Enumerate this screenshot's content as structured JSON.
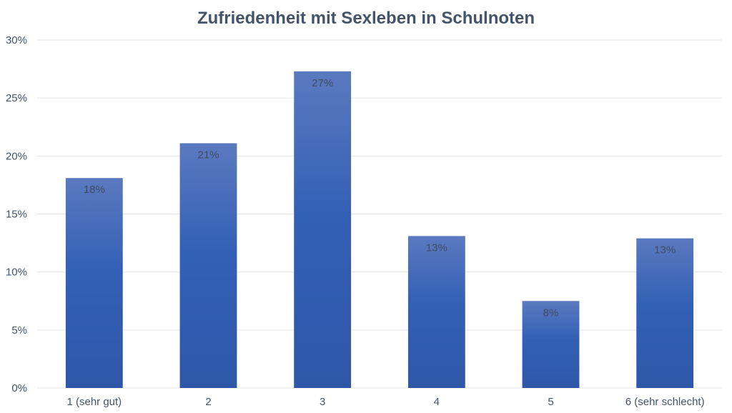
{
  "chart_data": {
    "type": "bar",
    "title": "Zufriedenheit mit Sexleben in Schulnoten",
    "xlabel": "",
    "ylabel": "",
    "categories": [
      "1 (sehr gut)",
      "2",
      "3",
      "4",
      "5",
      "6 (sehr schlecht)"
    ],
    "values": [
      18.1,
      21.1,
      27.3,
      13.1,
      7.5,
      12.9
    ],
    "data_labels": [
      "18%",
      "21%",
      "27%",
      "13%",
      "8%",
      "13%"
    ],
    "ylim": [
      0,
      30
    ],
    "y_ticks": [
      0,
      5,
      10,
      15,
      20,
      25,
      30
    ],
    "y_tick_labels": [
      "0%",
      "5%",
      "10%",
      "15%",
      "20%",
      "25%",
      "30%"
    ],
    "grid": true,
    "legend": "none",
    "bar_color_top": "#5b79bf",
    "bar_color_bottom": "#2f57a8"
  }
}
